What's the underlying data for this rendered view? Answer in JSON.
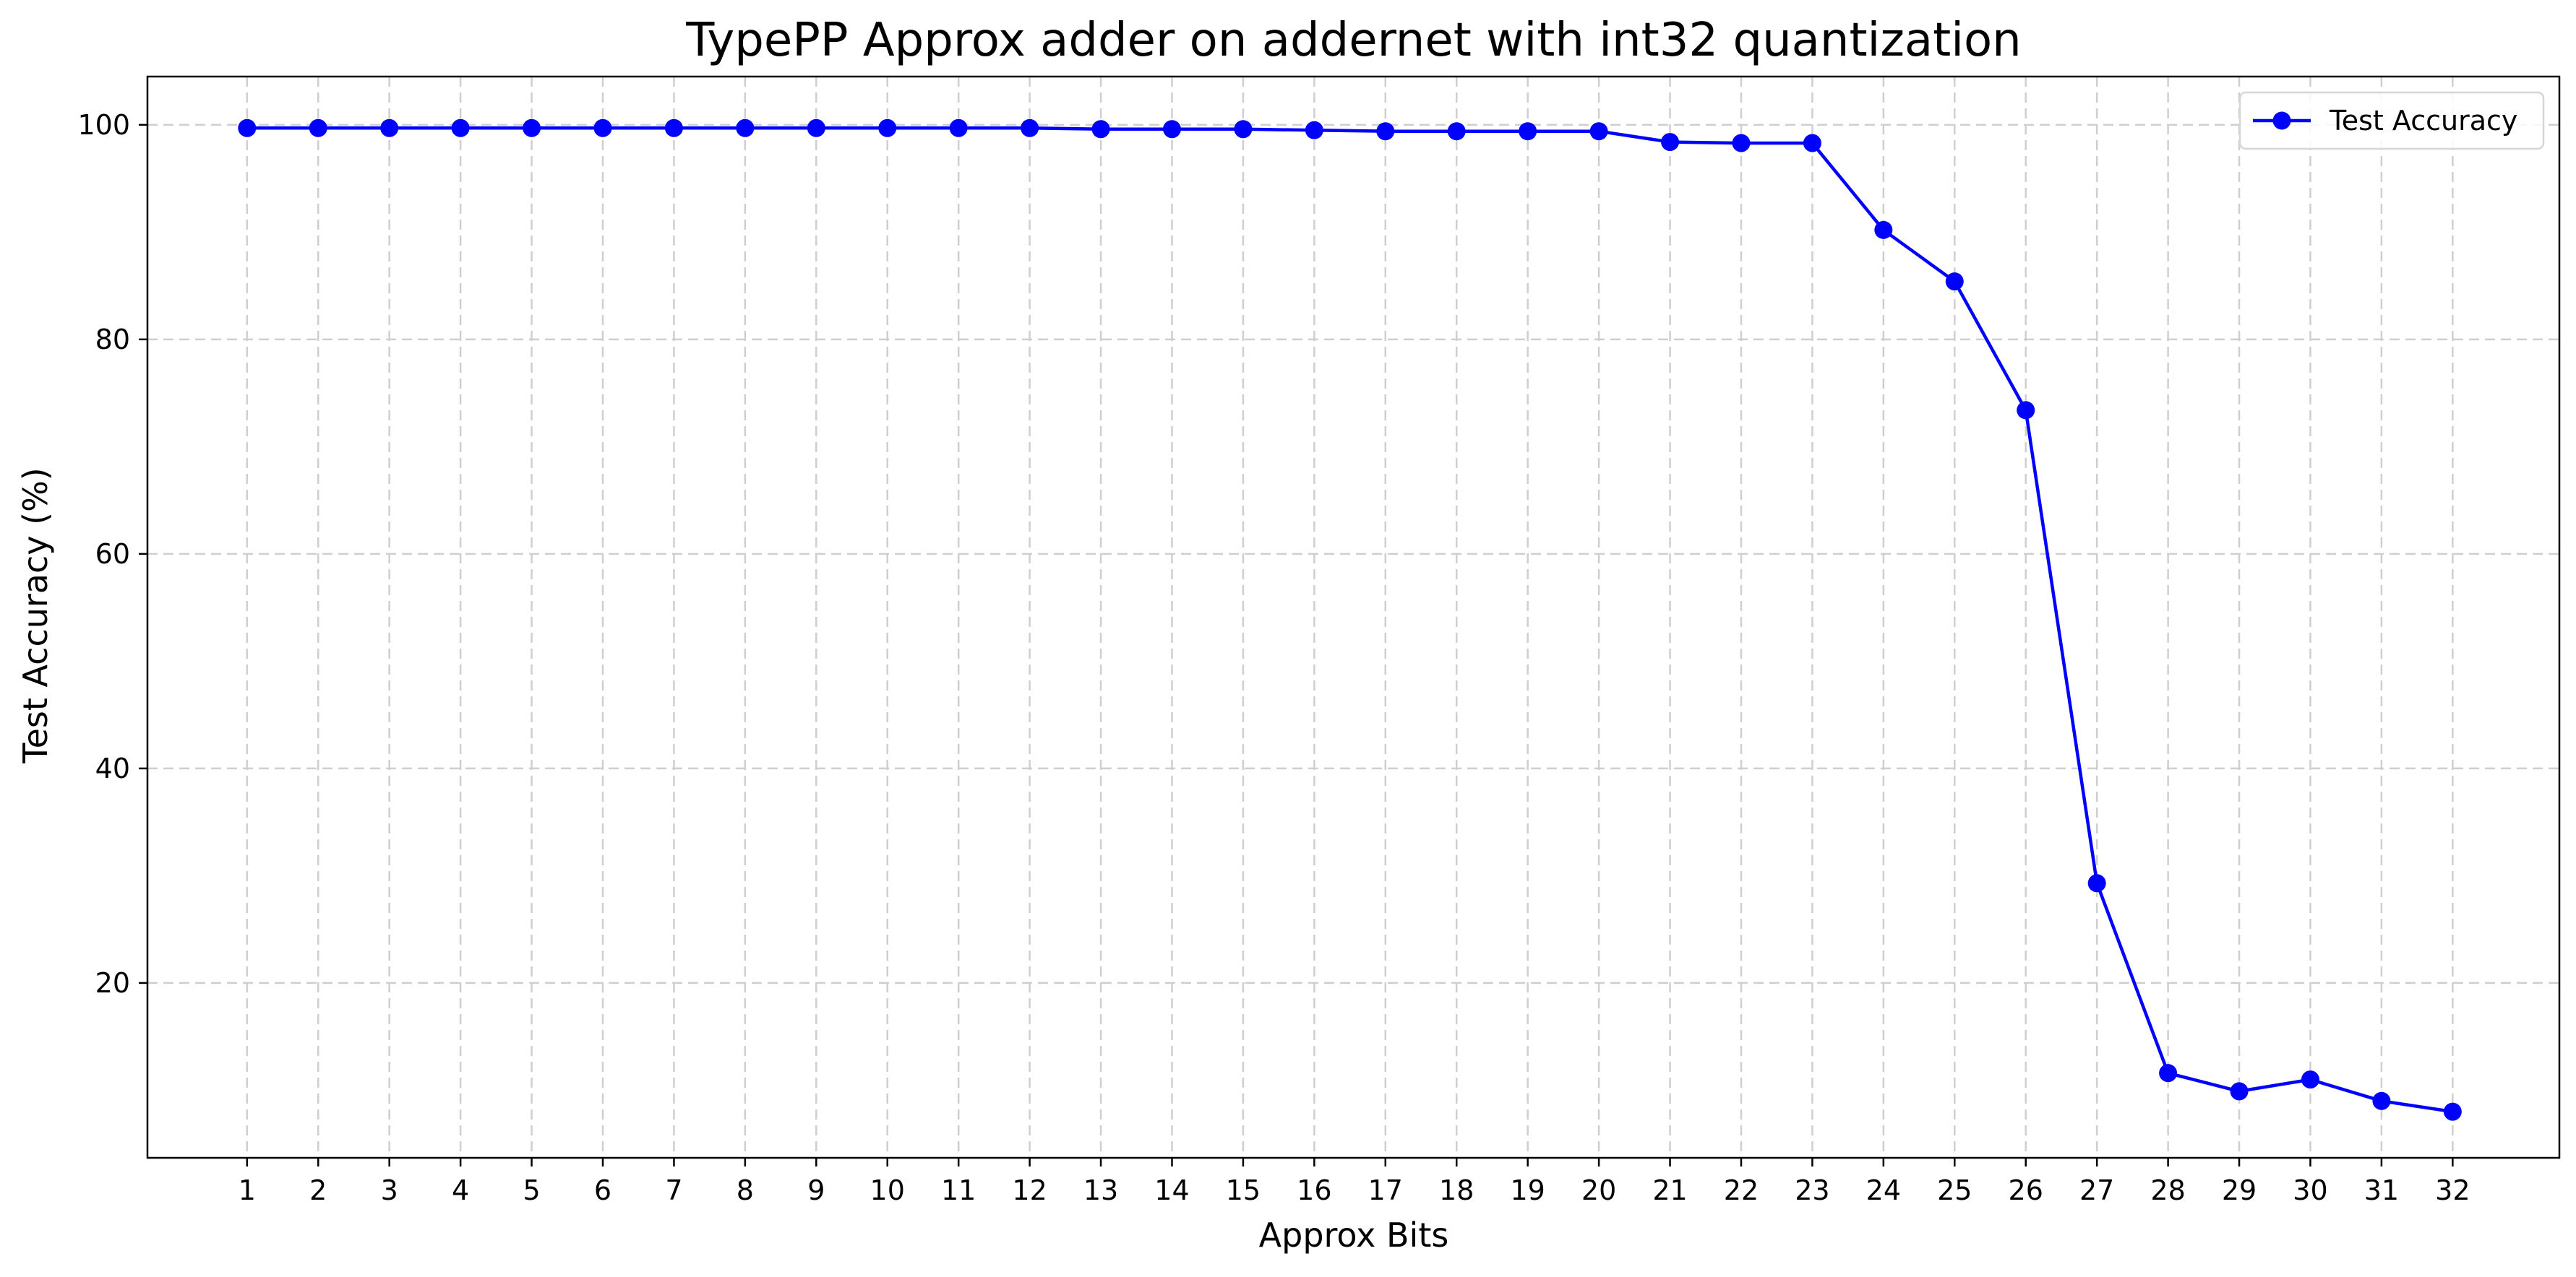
{
  "chart_data": {
    "type": "line",
    "title": "TypePP Approx adder on addernet with int32 quantization",
    "xlabel": "Approx Bits",
    "ylabel": "Test Accuracy (%)",
    "xlim": [
      -0.4,
      33.5
    ],
    "ylim": [
      3.7,
      104.5
    ],
    "x_ticks": [
      1,
      2,
      3,
      4,
      5,
      6,
      7,
      8,
      9,
      10,
      11,
      12,
      13,
      14,
      15,
      16,
      17,
      18,
      19,
      20,
      21,
      22,
      23,
      24,
      25,
      26,
      27,
      28,
      29,
      30,
      31,
      32
    ],
    "y_ticks": [
      20,
      40,
      60,
      80,
      100
    ],
    "grid": true,
    "legend_position": "top-right",
    "series": [
      {
        "name": "Test Accuracy",
        "color": "#0000ff",
        "marker": "circle",
        "x": [
          1,
          2,
          3,
          4,
          5,
          6,
          7,
          8,
          9,
          10,
          11,
          12,
          13,
          14,
          15,
          16,
          17,
          18,
          19,
          20,
          21,
          22,
          23,
          24,
          25,
          26,
          27,
          28,
          29,
          30,
          31,
          32
        ],
        "values": [
          99.7,
          99.7,
          99.7,
          99.7,
          99.7,
          99.7,
          99.7,
          99.7,
          99.7,
          99.7,
          99.7,
          99.7,
          99.6,
          99.6,
          99.6,
          99.5,
          99.4,
          99.4,
          99.4,
          99.4,
          98.4,
          98.3,
          98.3,
          90.2,
          85.4,
          73.4,
          29.3,
          11.6,
          9.9,
          11.0,
          9.0,
          8.0
        ]
      }
    ]
  }
}
